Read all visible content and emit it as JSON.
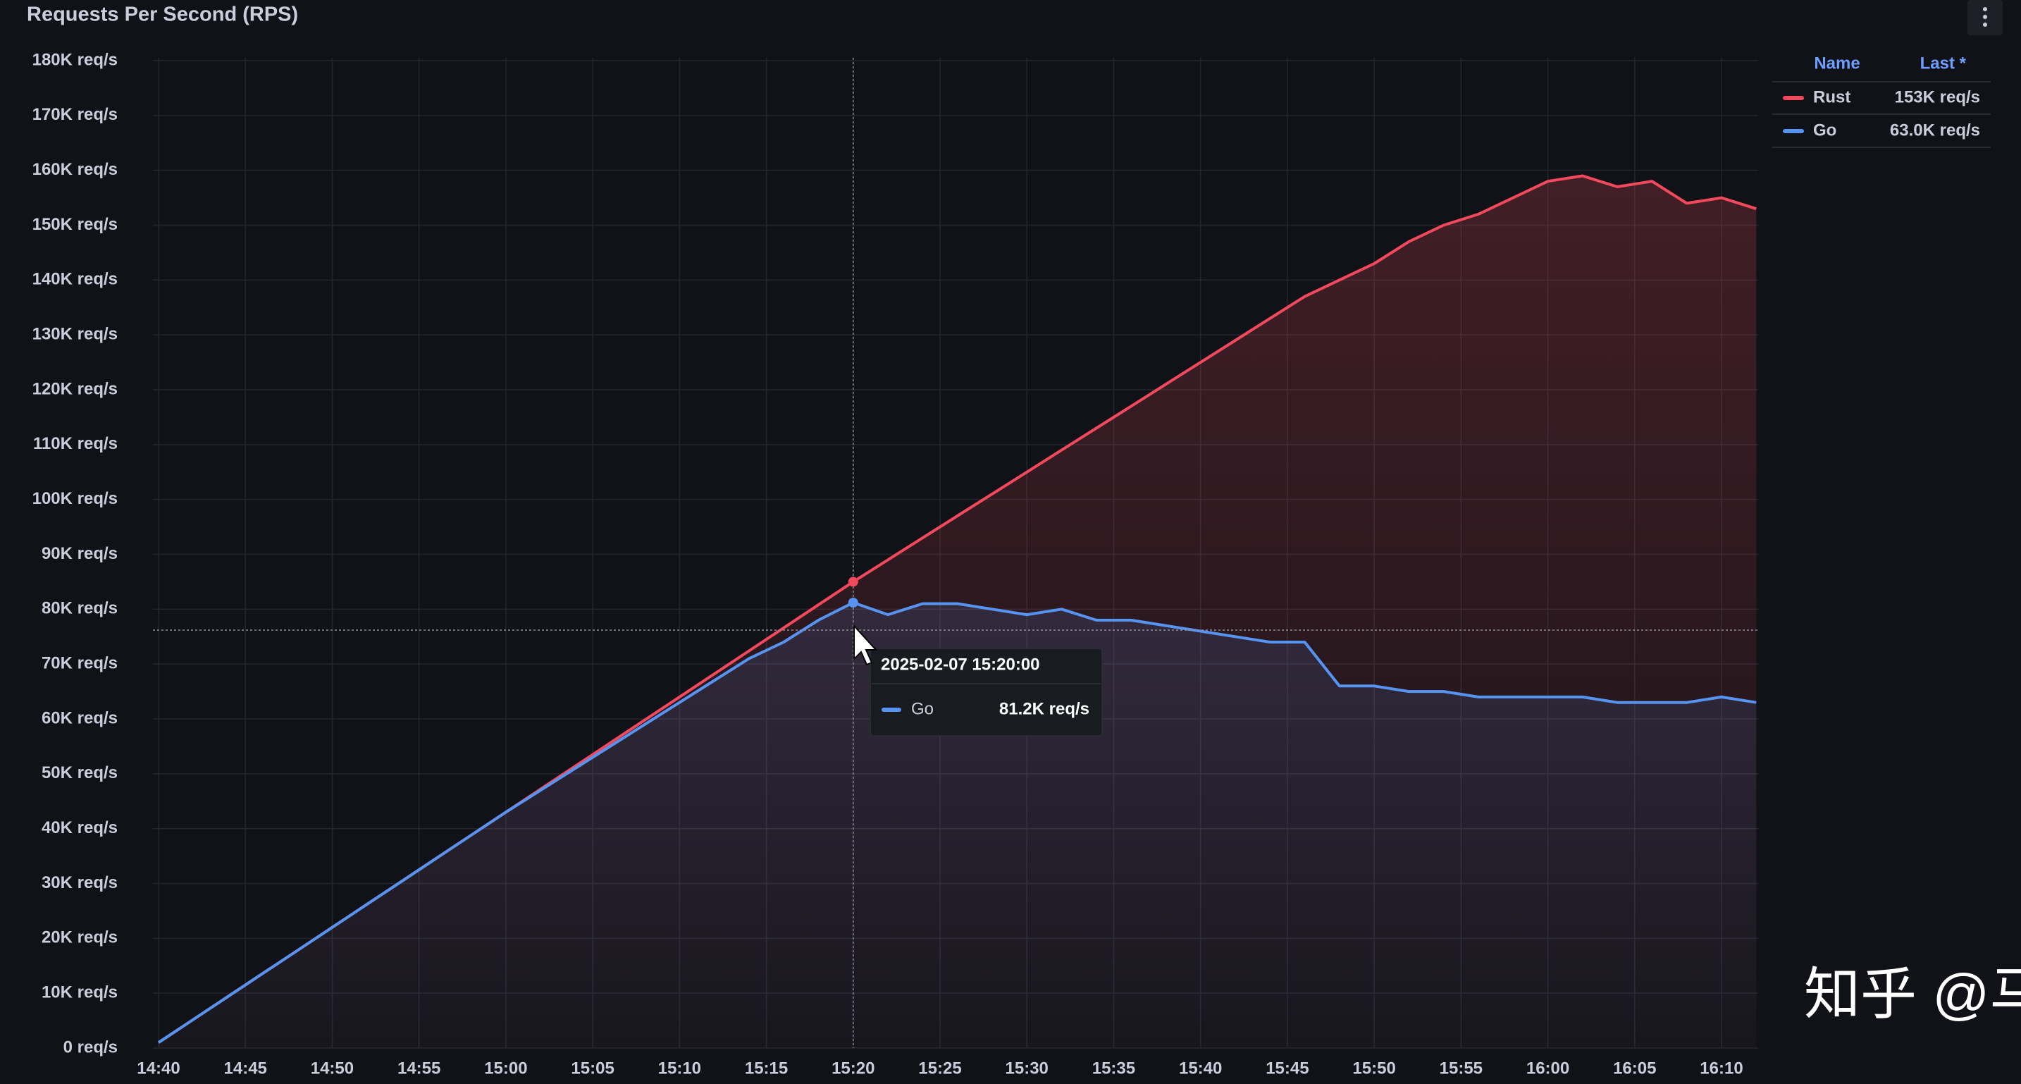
{
  "chart_data": {
    "type": "line",
    "title": "Requests Per Second (RPS)",
    "x": [
      "14:40",
      "14:42",
      "14:44",
      "14:46",
      "14:48",
      "14:50",
      "14:52",
      "14:54",
      "14:56",
      "14:58",
      "15:00",
      "15:02",
      "15:04",
      "15:06",
      "15:08",
      "15:10",
      "15:12",
      "15:14",
      "15:16",
      "15:18",
      "15:20",
      "15:22",
      "15:24",
      "15:26",
      "15:28",
      "15:30",
      "15:32",
      "15:34",
      "15:36",
      "15:38",
      "15:40",
      "15:42",
      "15:44",
      "15:46",
      "15:48",
      "15:50",
      "15:52",
      "15:54",
      "15:56",
      "15:58",
      "16:00",
      "16:02",
      "16:04",
      "16:06",
      "16:08",
      "16:10",
      "16:12"
    ],
    "xticks": [
      "14:40",
      "14:45",
      "14:50",
      "14:55",
      "15:00",
      "15:05",
      "15:10",
      "15:15",
      "15:20",
      "15:25",
      "15:30",
      "15:35",
      "15:40",
      "15:45",
      "15:50",
      "15:55",
      "16:00",
      "16:05",
      "16:10"
    ],
    "ylim": [
      0,
      180000
    ],
    "yticks": [
      {
        "value": 0,
        "label": "0 req/s"
      },
      {
        "value": 10000,
        "label": "10K req/s"
      },
      {
        "value": 20000,
        "label": "20K req/s"
      },
      {
        "value": 30000,
        "label": "30K req/s"
      },
      {
        "value": 40000,
        "label": "40K req/s"
      },
      {
        "value": 50000,
        "label": "50K req/s"
      },
      {
        "value": 60000,
        "label": "60K req/s"
      },
      {
        "value": 70000,
        "label": "70K req/s"
      },
      {
        "value": 80000,
        "label": "80K req/s"
      },
      {
        "value": 90000,
        "label": "90K req/s"
      },
      {
        "value": 100000,
        "label": "100K req/s"
      },
      {
        "value": 110000,
        "label": "110K req/s"
      },
      {
        "value": 120000,
        "label": "120K req/s"
      },
      {
        "value": 130000,
        "label": "130K req/s"
      },
      {
        "value": 140000,
        "label": "140K req/s"
      },
      {
        "value": 150000,
        "label": "150K req/s"
      },
      {
        "value": 160000,
        "label": "160K req/s"
      },
      {
        "value": 170000,
        "label": "170K req/s"
      },
      {
        "value": 180000,
        "label": "180K req/s"
      }
    ],
    "grid": true,
    "legend": {
      "position": "right",
      "headers": [
        "Name",
        "Last *"
      ]
    },
    "series": [
      {
        "name": "Rust",
        "color": "#f2495c",
        "last_label": "153K req/s",
        "values": [
          1000,
          5200,
          9400,
          13600,
          17800,
          22000,
          26200,
          30400,
          34600,
          38800,
          43000,
          47200,
          51400,
          55600,
          59800,
          64000,
          68200,
          72400,
          76600,
          80800,
          85000,
          89000,
          93000,
          97000,
          101000,
          105000,
          109000,
          113000,
          117000,
          121000,
          125000,
          129000,
          133000,
          137000,
          140000,
          143000,
          147000,
          150000,
          152000,
          155000,
          158000,
          159000,
          157000,
          158000,
          154000,
          155000,
          153000
        ]
      },
      {
        "name": "Go",
        "color": "#5794f2",
        "last_label": "63.0K req/s",
        "values": [
          1000,
          5200,
          9400,
          13600,
          17800,
          22000,
          26200,
          30400,
          34600,
          38800,
          43000,
          47000,
          51000,
          55000,
          59000,
          63000,
          67000,
          71000,
          74000,
          78000,
          81200,
          79000,
          81000,
          81000,
          80000,
          79000,
          80000,
          78000,
          78000,
          77000,
          76000,
          75000,
          74000,
          74000,
          66000,
          66000,
          65000,
          65000,
          64000,
          64000,
          64000,
          64000,
          63000,
          63000,
          63000,
          64000,
          63000
        ]
      }
    ],
    "tooltip": {
      "time": "2025-02-07 15:20:00",
      "series": "Go",
      "value_label": "81.2K req/s"
    },
    "watermark": "知乎 @马甲"
  }
}
